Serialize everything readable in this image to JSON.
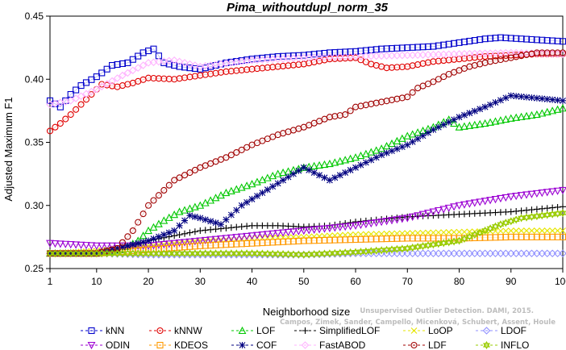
{
  "chart_data": {
    "type": "line",
    "title": "Pima_withoutdupl_norm_35",
    "xlabel": "Neighborhood size",
    "ylabel": "Adjusted Maximum F1",
    "xlim": [
      1,
      100
    ],
    "ylim": [
      0.25,
      0.45
    ],
    "xticks": [
      1,
      10,
      20,
      30,
      40,
      50,
      60,
      70,
      80,
      90,
      100
    ],
    "yticks": [
      0.25,
      0.3,
      0.35,
      0.4,
      0.45
    ],
    "ytick_labels": [
      "0.25",
      "0.30",
      "0.35",
      "0.40",
      "0.45"
    ],
    "grid": false,
    "legend_position": "bottom",
    "series": [
      {
        "name": "kNN",
        "color": "#0000cc",
        "marker": "square",
        "points": [
          [
            1,
            0.383
          ],
          [
            3,
            0.378
          ],
          [
            5,
            0.388
          ],
          [
            7,
            0.395
          ],
          [
            10,
            0.402
          ],
          [
            13,
            0.411
          ],
          [
            16,
            0.413
          ],
          [
            19,
            0.421
          ],
          [
            21,
            0.424
          ],
          [
            23,
            0.413
          ],
          [
            26,
            0.41
          ],
          [
            30,
            0.408
          ],
          [
            35,
            0.413
          ],
          [
            40,
            0.416
          ],
          [
            45,
            0.418
          ],
          [
            50,
            0.419
          ],
          [
            55,
            0.421
          ],
          [
            60,
            0.422
          ],
          [
            65,
            0.424
          ],
          [
            70,
            0.425
          ],
          [
            75,
            0.426
          ],
          [
            80,
            0.429
          ],
          [
            85,
            0.432
          ],
          [
            88,
            0.433
          ],
          [
            92,
            0.432
          ],
          [
            96,
            0.431
          ],
          [
            100,
            0.43
          ]
        ]
      },
      {
        "name": "kNNW",
        "color": "#e00000",
        "marker": "circle",
        "points": [
          [
            1,
            0.359
          ],
          [
            3,
            0.365
          ],
          [
            5,
            0.372
          ],
          [
            7,
            0.38
          ],
          [
            9,
            0.388
          ],
          [
            11,
            0.396
          ],
          [
            14,
            0.394
          ],
          [
            17,
            0.397
          ],
          [
            20,
            0.401
          ],
          [
            25,
            0.4
          ],
          [
            30,
            0.403
          ],
          [
            35,
            0.406
          ],
          [
            40,
            0.408
          ],
          [
            45,
            0.41
          ],
          [
            50,
            0.412
          ],
          [
            55,
            0.416
          ],
          [
            60,
            0.417
          ],
          [
            63,
            0.412
          ],
          [
            66,
            0.409
          ],
          [
            70,
            0.41
          ],
          [
            75,
            0.414
          ],
          [
            80,
            0.416
          ],
          [
            85,
            0.418
          ],
          [
            90,
            0.419
          ],
          [
            95,
            0.42
          ],
          [
            100,
            0.42
          ]
        ]
      },
      {
        "name": "LOF",
        "color": "#00c800",
        "marker": "triangle-up",
        "points": [
          [
            1,
            0.262
          ],
          [
            5,
            0.262
          ],
          [
            10,
            0.262
          ],
          [
            15,
            0.265
          ],
          [
            18,
            0.272
          ],
          [
            20,
            0.28
          ],
          [
            23,
            0.288
          ],
          [
            26,
            0.295
          ],
          [
            30,
            0.3
          ],
          [
            35,
            0.31
          ],
          [
            40,
            0.317
          ],
          [
            45,
            0.325
          ],
          [
            50,
            0.33
          ],
          [
            55,
            0.333
          ],
          [
            60,
            0.338
          ],
          [
            65,
            0.345
          ],
          [
            70,
            0.355
          ],
          [
            75,
            0.362
          ],
          [
            78,
            0.368
          ],
          [
            80,
            0.362
          ],
          [
            85,
            0.365
          ],
          [
            90,
            0.369
          ],
          [
            95,
            0.372
          ],
          [
            100,
            0.377
          ]
        ]
      },
      {
        "name": "SimplifiedLOF",
        "color": "#000000",
        "marker": "plus",
        "points": [
          [
            1,
            0.262
          ],
          [
            10,
            0.263
          ],
          [
            15,
            0.265
          ],
          [
            20,
            0.272
          ],
          [
            25,
            0.276
          ],
          [
            30,
            0.28
          ],
          [
            35,
            0.282
          ],
          [
            40,
            0.284
          ],
          [
            45,
            0.284
          ],
          [
            50,
            0.283
          ],
          [
            55,
            0.284
          ],
          [
            60,
            0.287
          ],
          [
            65,
            0.289
          ],
          [
            70,
            0.291
          ],
          [
            75,
            0.292
          ],
          [
            80,
            0.293
          ],
          [
            85,
            0.294
          ],
          [
            90,
            0.295
          ],
          [
            95,
            0.297
          ],
          [
            100,
            0.299
          ]
        ]
      },
      {
        "name": "LoOP",
        "color": "#e6e600",
        "marker": "x",
        "points": [
          [
            1,
            0.262
          ],
          [
            10,
            0.264
          ],
          [
            20,
            0.268
          ],
          [
            30,
            0.272
          ],
          [
            40,
            0.274
          ],
          [
            50,
            0.275
          ],
          [
            60,
            0.277
          ],
          [
            70,
            0.278
          ],
          [
            80,
            0.279
          ],
          [
            90,
            0.28
          ],
          [
            100,
            0.28
          ]
        ]
      },
      {
        "name": "LDOF",
        "color": "#9090ff",
        "marker": "diamond",
        "points": [
          [
            1,
            0.262
          ],
          [
            10,
            0.262
          ],
          [
            20,
            0.261
          ],
          [
            30,
            0.261
          ],
          [
            40,
            0.261
          ],
          [
            50,
            0.261
          ],
          [
            60,
            0.262
          ],
          [
            70,
            0.262
          ],
          [
            80,
            0.262
          ],
          [
            90,
            0.262
          ],
          [
            100,
            0.262
          ]
        ]
      },
      {
        "name": "ODIN",
        "color": "#9b00d3",
        "marker": "triangle-down",
        "points": [
          [
            1,
            0.27
          ],
          [
            10,
            0.268
          ],
          [
            20,
            0.268
          ],
          [
            30,
            0.272
          ],
          [
            40,
            0.276
          ],
          [
            50,
            0.28
          ],
          [
            60,
            0.284
          ],
          [
            70,
            0.29
          ],
          [
            80,
            0.3
          ],
          [
            90,
            0.307
          ],
          [
            100,
            0.312
          ]
        ]
      },
      {
        "name": "KDEOS",
        "color": "#ff9900",
        "marker": "square",
        "points": [
          [
            1,
            0.262
          ],
          [
            10,
            0.262
          ],
          [
            20,
            0.265
          ],
          [
            30,
            0.268
          ],
          [
            40,
            0.27
          ],
          [
            50,
            0.272
          ],
          [
            60,
            0.273
          ],
          [
            70,
            0.274
          ],
          [
            80,
            0.274
          ],
          [
            90,
            0.275
          ],
          [
            100,
            0.275
          ]
        ]
      },
      {
        "name": "COF",
        "color": "#000080",
        "marker": "star",
        "points": [
          [
            1,
            0.262
          ],
          [
            10,
            0.262
          ],
          [
            20,
            0.272
          ],
          [
            25,
            0.28
          ],
          [
            28,
            0.292
          ],
          [
            30,
            0.29
          ],
          [
            34,
            0.285
          ],
          [
            38,
            0.3
          ],
          [
            42,
            0.31
          ],
          [
            46,
            0.32
          ],
          [
            50,
            0.33
          ],
          [
            55,
            0.32
          ],
          [
            60,
            0.33
          ],
          [
            65,
            0.34
          ],
          [
            70,
            0.348
          ],
          [
            75,
            0.36
          ],
          [
            80,
            0.37
          ],
          [
            85,
            0.378
          ],
          [
            90,
            0.387
          ],
          [
            95,
            0.385
          ],
          [
            100,
            0.383
          ]
        ]
      },
      {
        "name": "FastABOD",
        "color": "#ffb3ff",
        "marker": "diamond",
        "points": [
          [
            1,
            0.38
          ],
          [
            5,
            0.383
          ],
          [
            10,
            0.392
          ],
          [
            15,
            0.403
          ],
          [
            20,
            0.413
          ],
          [
            25,
            0.415
          ],
          [
            30,
            0.41
          ],
          [
            40,
            0.415
          ],
          [
            50,
            0.417
          ],
          [
            60,
            0.418
          ],
          [
            70,
            0.419
          ],
          [
            80,
            0.42
          ],
          [
            90,
            0.421
          ],
          [
            100,
            0.42
          ]
        ]
      },
      {
        "name": "LDF",
        "color": "#a00000",
        "marker": "circle",
        "points": [
          [
            1,
            0.262
          ],
          [
            10,
            0.262
          ],
          [
            14,
            0.266
          ],
          [
            17,
            0.28
          ],
          [
            20,
            0.3
          ],
          [
            25,
            0.32
          ],
          [
            30,
            0.33
          ],
          [
            35,
            0.338
          ],
          [
            40,
            0.348
          ],
          [
            45,
            0.356
          ],
          [
            50,
            0.362
          ],
          [
            55,
            0.37
          ],
          [
            58,
            0.372
          ],
          [
            60,
            0.378
          ],
          [
            65,
            0.382
          ],
          [
            70,
            0.386
          ],
          [
            72,
            0.393
          ],
          [
            75,
            0.398
          ],
          [
            78,
            0.404
          ],
          [
            82,
            0.41
          ],
          [
            86,
            0.414
          ],
          [
            90,
            0.417
          ],
          [
            95,
            0.421
          ],
          [
            100,
            0.421
          ]
        ]
      },
      {
        "name": "INFLO",
        "color": "#99cc00",
        "marker": "star-hex",
        "points": [
          [
            1,
            0.262
          ],
          [
            10,
            0.262
          ],
          [
            20,
            0.262
          ],
          [
            30,
            0.262
          ],
          [
            40,
            0.262
          ],
          [
            50,
            0.261
          ],
          [
            60,
            0.263
          ],
          [
            70,
            0.266
          ],
          [
            80,
            0.272
          ],
          [
            88,
            0.285
          ],
          [
            92,
            0.29
          ],
          [
            96,
            0.292
          ],
          [
            100,
            0.294
          ]
        ]
      }
    ]
  },
  "watermark": {
    "line1": "Unsupervised Outlier Detection. DAMI, 2015.",
    "line2": "Campos, Zimek, Sander, Campello, Micenková, Schubert, Assent, Houle"
  }
}
